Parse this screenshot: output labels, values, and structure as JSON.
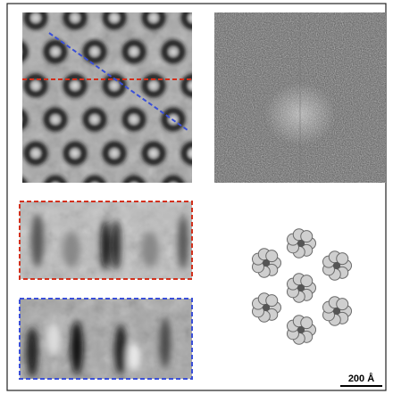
{
  "scale_bar": {
    "label": "200 Å"
  }
}
